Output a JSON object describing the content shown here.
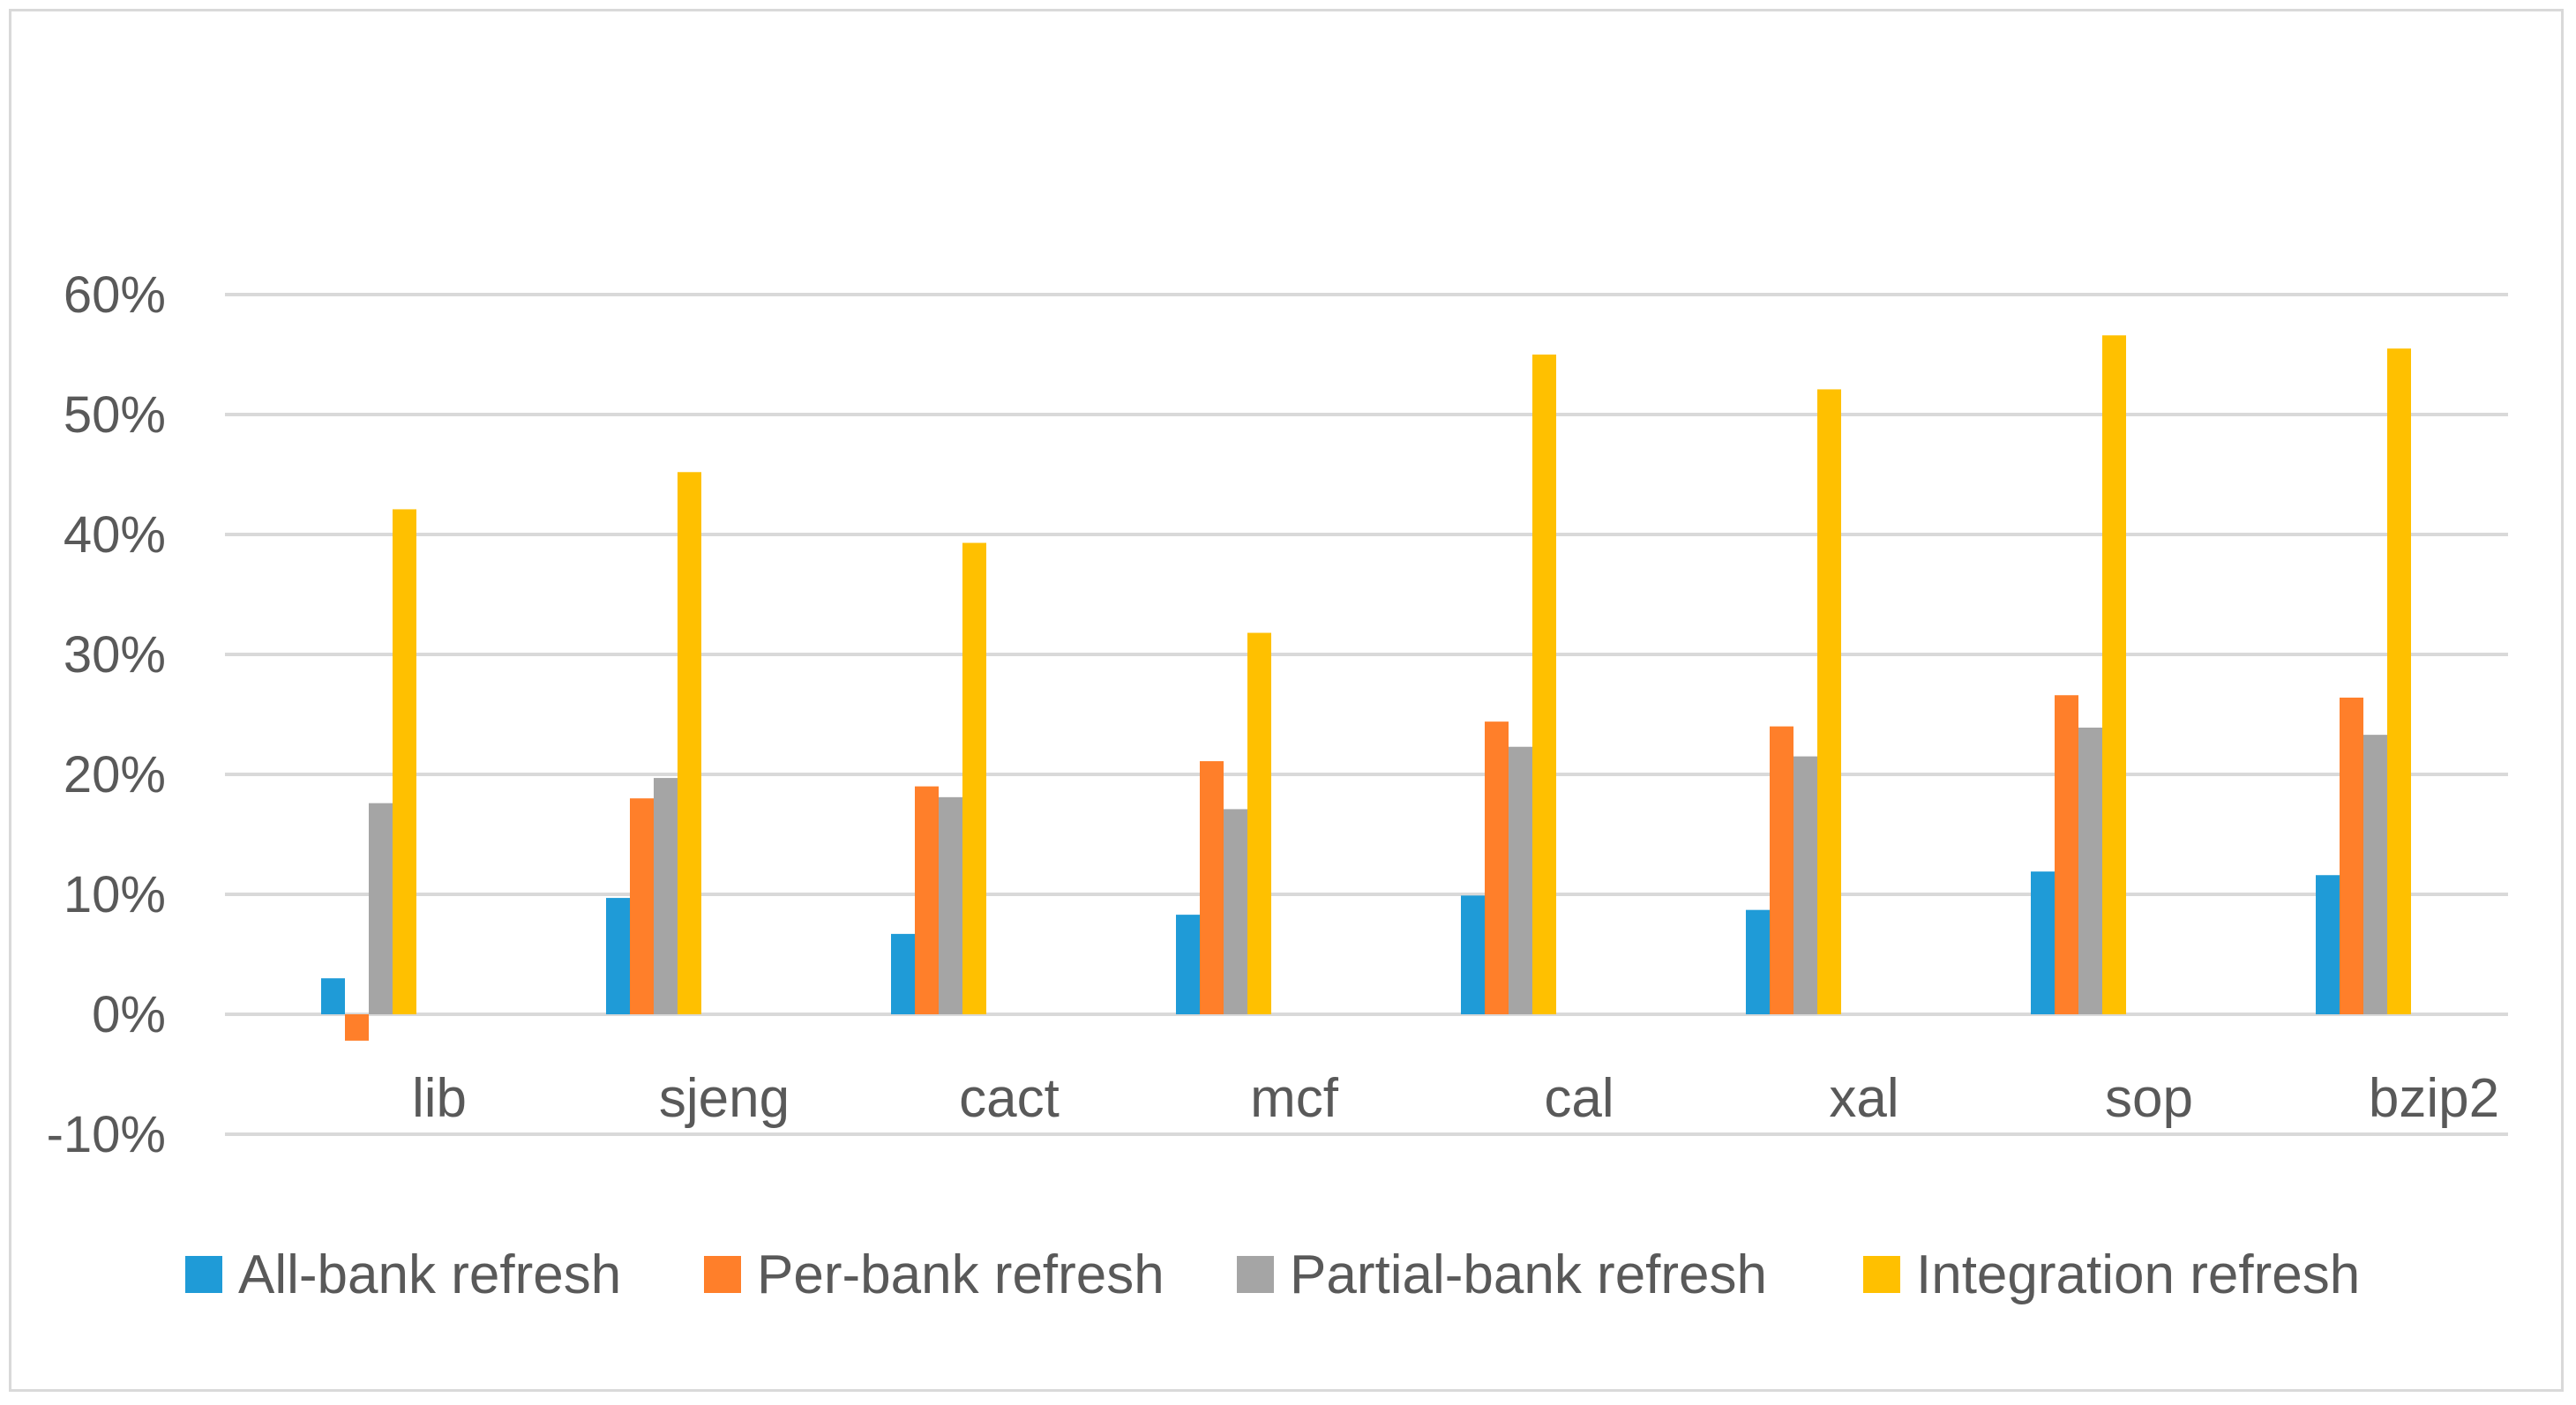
{
  "chart_data": {
    "type": "bar",
    "title": "",
    "xlabel": "",
    "ylabel": "",
    "categories": [
      "lib",
      "sjeng",
      "cact",
      "mcf",
      "cal",
      "xal",
      "sop",
      "bzip2"
    ],
    "ylim": [
      -0.1,
      0.6
    ],
    "ytick_values": [
      -0.1,
      0,
      0.1,
      0.2,
      0.3,
      0.4,
      0.5,
      0.6
    ],
    "ytick_labels": [
      "-10%",
      "0%",
      "10%",
      "20%",
      "30%",
      "40%",
      "50%",
      "60%"
    ],
    "grid": true,
    "legend_position": "bottom",
    "series": [
      {
        "name": "All-bank refresh",
        "color": "#1f9bd7",
        "values": [
          0.03,
          0.097,
          0.067,
          0.083,
          0.099,
          0.087,
          0.119,
          0.116
        ]
      },
      {
        "name": "Per-bank refresh",
        "color": "#ff7f2a",
        "values": [
          -0.022,
          0.18,
          0.19,
          0.211,
          0.244,
          0.24,
          0.266,
          0.264
        ]
      },
      {
        "name": "Partial-bank refresh",
        "color": "#a5a5a5",
        "values": [
          0.176,
          0.197,
          0.181,
          0.171,
          0.223,
          0.215,
          0.239,
          0.233
        ]
      },
      {
        "name": "Integration refresh",
        "color": "#ffc000",
        "values": [
          0.421,
          0.452,
          0.393,
          0.318,
          0.55,
          0.521,
          0.566,
          0.555
        ]
      }
    ]
  }
}
